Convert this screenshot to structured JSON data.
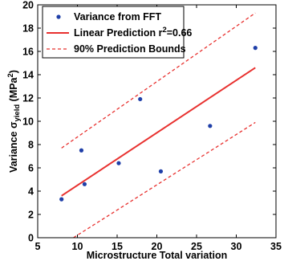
{
  "chart_data": {
    "type": "scatter",
    "title": "",
    "xlabel": "Microstructure Total variation",
    "ylabel": {
      "prefix": "Variance σ",
      "subscript": "yield",
      "unit_open": " (MPa",
      "superscript": "2",
      "unit_close": ")"
    },
    "xlim": [
      5,
      35
    ],
    "ylim": [
      0,
      20
    ],
    "xticks": [
      "5",
      "10",
      "15",
      "20",
      "25",
      "30",
      "35"
    ],
    "yticks": [
      "0",
      "2",
      "4",
      "6",
      "8",
      "10",
      "12",
      "14",
      "16",
      "18",
      "20"
    ],
    "grid": false,
    "legend_position": "top-left",
    "series": [
      {
        "name": "Variance from FFT",
        "kind": "scatter",
        "color": "#1f3fa8",
        "x": [
          8.0,
          10.5,
          10.9,
          15.2,
          17.9,
          20.5,
          26.7,
          32.4
        ],
        "y": [
          3.3,
          7.5,
          4.6,
          6.4,
          11.9,
          5.7,
          9.6,
          16.3
        ]
      },
      {
        "name_parts": [
          "Linear Prediction r",
          "2",
          "=0.66"
        ],
        "kind": "line",
        "style": "solid",
        "color": "#e8312f",
        "x": [
          8.0,
          32.4
        ],
        "y": [
          3.6,
          14.6
        ]
      },
      {
        "name": "90% Prediction Bounds",
        "kind": "line",
        "style": "dashed",
        "color": "#e8312f",
        "x": [
          8.0,
          32.4
        ],
        "y": [
          7.7,
          19.3
        ]
      },
      {
        "kind": "line",
        "style": "dashed",
        "color": "#e8312f",
        "x": [
          9.5,
          32.4
        ],
        "y": [
          0.0,
          9.9
        ]
      }
    ]
  }
}
